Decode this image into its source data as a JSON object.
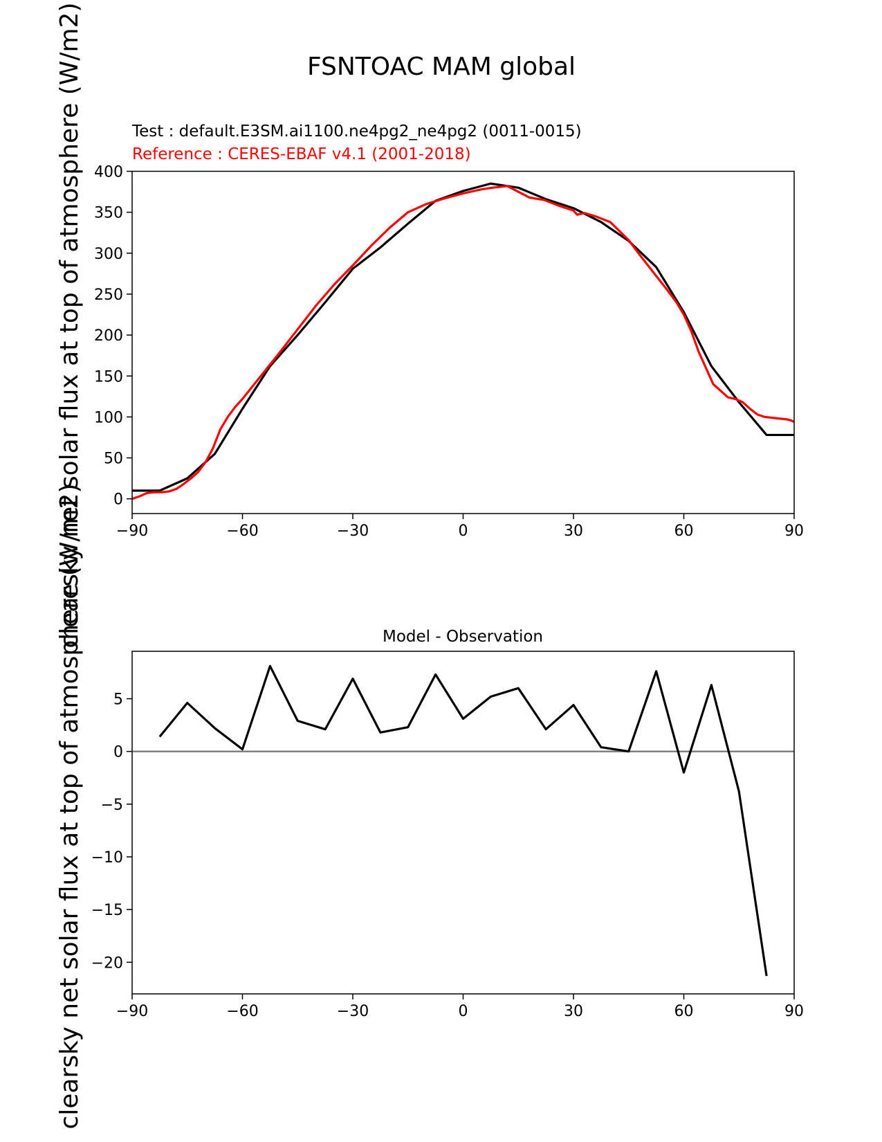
{
  "figure": {
    "suptitle": "FSNTOAC MAM global",
    "ylabel_top": "clearsky net solar flux at top of atmosphere (W/m2)",
    "ylabel_bottom": "clearsky net solar flux at top of atmosphere (W/m2)"
  },
  "chart_data": [
    {
      "type": "line",
      "test_label": "Test : default.E3SM.ai1100.ne4pg2_ne4pg2 (0011-0015)",
      "reference_label": "Reference : CERES-EBAF v4.1 (2001-2018)",
      "xlim": [
        -90,
        90
      ],
      "ylim": [
        -18,
        400
      ],
      "xticks": [
        -90,
        -60,
        -30,
        0,
        30,
        60,
        90
      ],
      "yticks": [
        0,
        50,
        100,
        150,
        200,
        250,
        300,
        350,
        400
      ],
      "xtick_labels": [
        "−90",
        "−60",
        "−30",
        "0",
        "30",
        "60",
        "90"
      ],
      "ytick_labels": [
        "0",
        "50",
        "100",
        "150",
        "200",
        "250",
        "300",
        "350",
        "400"
      ],
      "series": [
        {
          "color": "#000000",
          "x": [
            -90,
            -82.5,
            -75,
            -67.5,
            -60,
            -52.5,
            -45,
            -37.5,
            -30,
            -22.5,
            -15,
            -7.5,
            0,
            7.5,
            15,
            22.5,
            30,
            37.5,
            45,
            52.5,
            60,
            67.5,
            75,
            82.5,
            90
          ],
          "y": [
            10,
            10,
            25,
            55,
            110,
            162,
            200,
            240,
            281,
            307,
            336,
            364,
            376,
            385,
            380,
            366,
            355,
            338,
            315,
            283,
            228,
            162,
            118,
            78,
            78
          ]
        },
        {
          "color": "#ff0000",
          "x": [
            -90,
            -88,
            -86,
            -84,
            -82,
            -80,
            -78,
            -76,
            -74,
            -72,
            -70,
            -68,
            -66,
            -64,
            -62,
            -60,
            -55,
            -50,
            -45,
            -40,
            -35,
            -30,
            -25,
            -20,
            -15,
            -10,
            -5,
            0,
            5,
            8,
            10,
            12,
            15,
            18,
            22,
            26,
            30,
            31,
            33,
            36,
            40,
            45,
            48,
            52,
            55,
            58,
            60,
            62,
            64,
            66,
            68,
            70,
            72,
            74,
            76,
            78,
            80,
            82,
            84,
            86,
            88,
            89,
            90
          ],
          "y": [
            0,
            3,
            7,
            8,
            8,
            9,
            12,
            18,
            25,
            33,
            45,
            62,
            85,
            100,
            112,
            122,
            150,
            178,
            207,
            236,
            262,
            285,
            309,
            331,
            350,
            360,
            367,
            373,
            378,
            380,
            381,
            382,
            375,
            368,
            365,
            358,
            352,
            347,
            349,
            345,
            338,
            316,
            298,
            275,
            258,
            240,
            225,
            205,
            180,
            160,
            140,
            132,
            124,
            122,
            118,
            110,
            103,
            100,
            99,
            98,
            97,
            96,
            94
          ]
        }
      ]
    },
    {
      "type": "line",
      "title": "Model - Observation",
      "xlim": [
        -90,
        90
      ],
      "ylim": [
        -23,
        9.5
      ],
      "xticks": [
        -90,
        -60,
        -30,
        0,
        30,
        60,
        90
      ],
      "yticks": [
        5,
        0,
        -5,
        -10,
        -15,
        -20
      ],
      "xtick_labels": [
        "−90",
        "−60",
        "−30",
        "0",
        "30",
        "60",
        "90"
      ],
      "ytick_labels": [
        "5",
        "0",
        "−5",
        "−10",
        "−15",
        "−20"
      ],
      "zero_line_color": "#808080",
      "series": [
        {
          "color": "#000000",
          "x": [
            -82.5,
            -75,
            -67.5,
            -60,
            -52.5,
            -45,
            -37.5,
            -30,
            -22.5,
            -15,
            -7.5,
            0,
            7.5,
            15,
            22.5,
            30,
            37.5,
            45,
            52.5,
            60,
            67.5,
            75,
            82.5
          ],
          "y": [
            1.4,
            4.6,
            2.2,
            0.2,
            8.1,
            2.9,
            2.1,
            6.9,
            1.8,
            2.3,
            7.3,
            3.1,
            5.2,
            6.0,
            2.1,
            4.4,
            0.4,
            0.0,
            7.6,
            -2.0,
            6.3,
            -3.8,
            -21.3
          ]
        }
      ]
    }
  ]
}
